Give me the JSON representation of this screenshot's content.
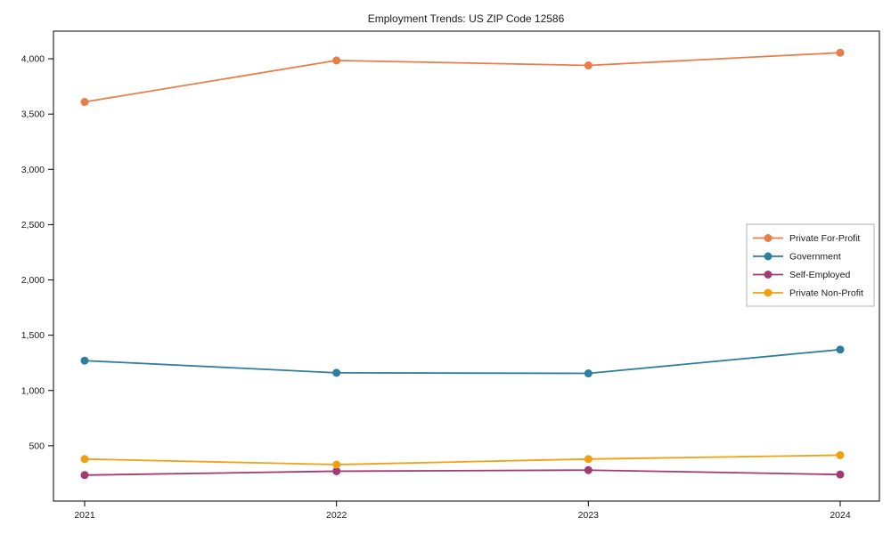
{
  "chart_data": {
    "type": "line",
    "title": "Employment Trends: US ZIP Code 12586",
    "x": [
      2021,
      2022,
      2023,
      2024
    ],
    "xtick_labels": [
      "2021",
      "2022",
      "2023",
      "2024"
    ],
    "series": [
      {
        "name": "Private For-Profit",
        "color": "#EA7C4A",
        "values": [
          3610,
          3985,
          3940,
          4055
        ]
      },
      {
        "name": "Government",
        "color": "#2E7EA0",
        "values": [
          1270,
          1160,
          1155,
          1370
        ]
      },
      {
        "name": "Self-Employed",
        "color": "#A23B72",
        "values": [
          235,
          270,
          280,
          240
        ]
      },
      {
        "name": "Private Non-Profit",
        "color": "#F0A011",
        "values": [
          380,
          330,
          380,
          415
        ]
      }
    ],
    "ylim": [
      0,
      4250
    ],
    "yticks": [
      500,
      1000,
      1500,
      2000,
      2500,
      3000,
      3500,
      4000
    ],
    "ytick_labels": [
      "500",
      "1,000",
      "1,500",
      "2,000",
      "2,500",
      "3,000",
      "3,500",
      "4,000"
    ],
    "xlabel": "",
    "ylabel": "",
    "grid": false,
    "legend": {
      "position": "center-right",
      "entries": [
        "Private For-Profit",
        "Government",
        "Self-Employed",
        "Private Non-Profit"
      ]
    },
    "colors": {
      "axis": "#000000",
      "text": "#1a1a1a",
      "legend_border": "#b3b3b3",
      "background": "#ffffff"
    }
  }
}
